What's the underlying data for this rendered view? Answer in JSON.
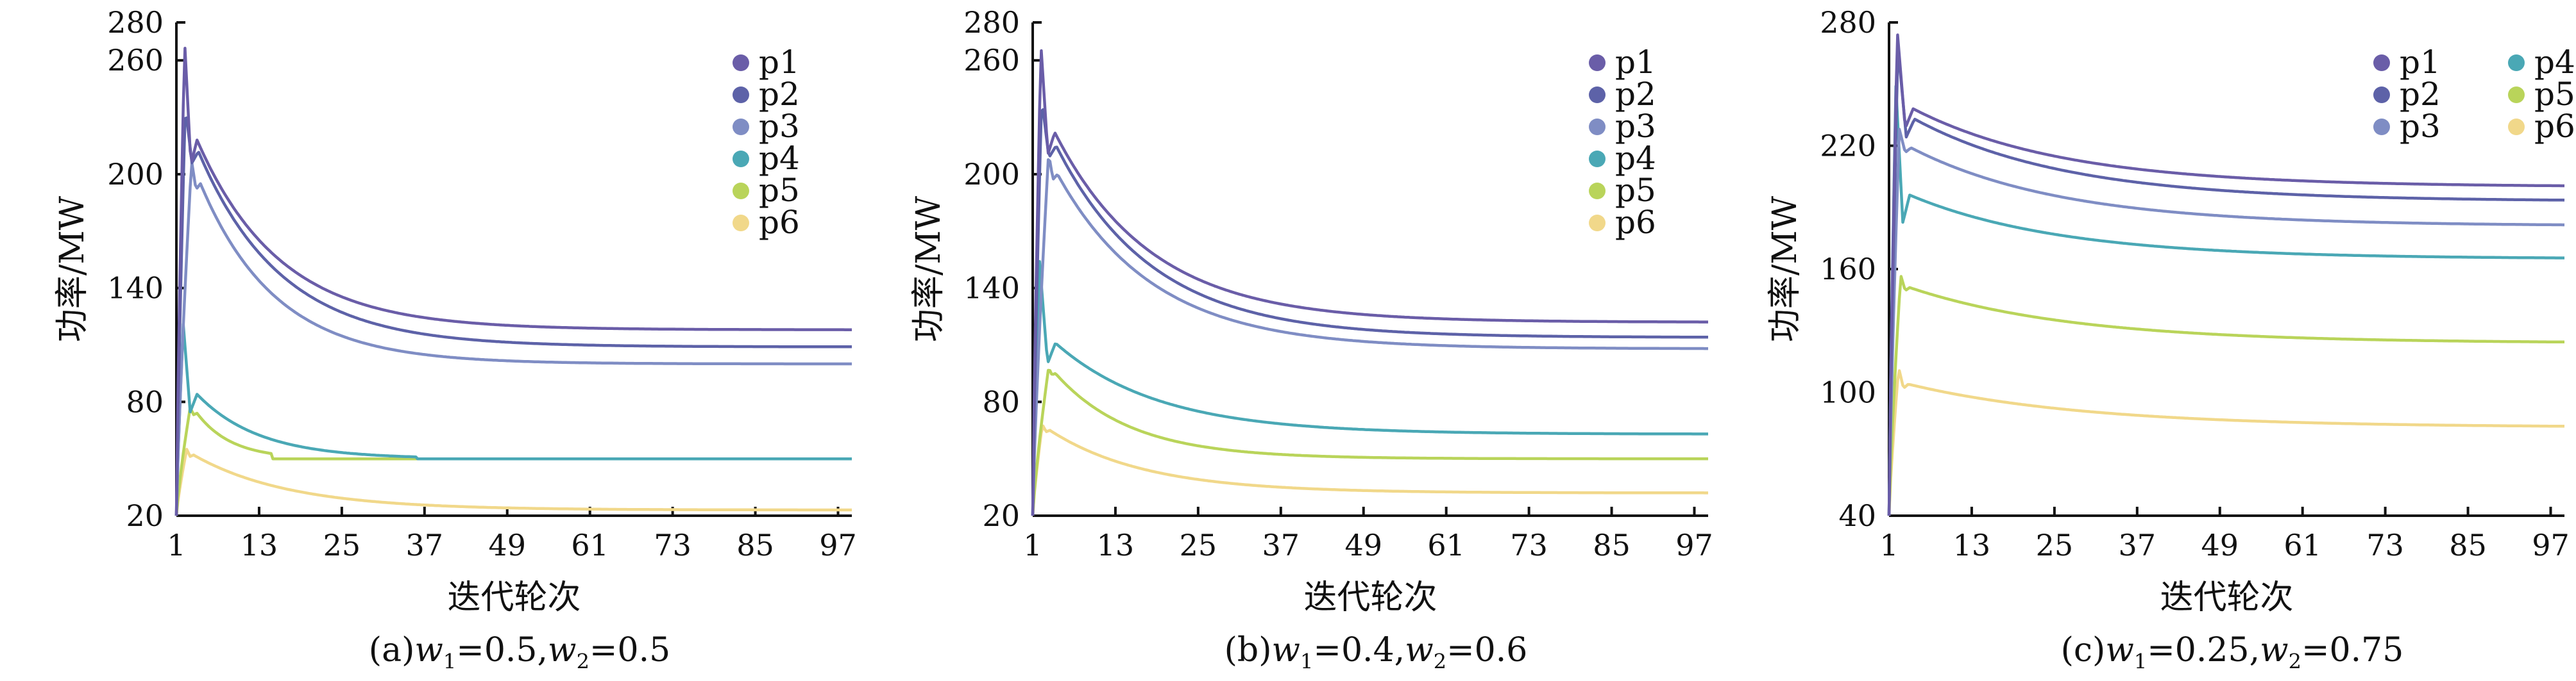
{
  "chart_data": [
    {
      "type": "line",
      "id": "a",
      "caption": {
        "prefix": "(a)",
        "w1_sym": "w",
        "w1_sub": "1",
        "w1_val": "=0.5,",
        "w2_sym": "w",
        "w2_sub": "2",
        "w2_val": "=0.5"
      },
      "xlabel": "迭代轮次",
      "ylabel": "功率/MW",
      "xlim": [
        1,
        99
      ],
      "ylim": [
        20,
        280
      ],
      "xticks": [
        1,
        13,
        25,
        37,
        49,
        61,
        73,
        85,
        97
      ],
      "yticks": [
        20,
        80,
        140,
        200,
        260,
        280
      ],
      "grid": false,
      "legend_position": "top-right",
      "legend_columns": 1,
      "series": [
        {
          "name": "p1",
          "color": "#6a5da8",
          "start": 20,
          "peak": 270,
          "peak_x": 2.2,
          "settle": 118,
          "bump_x": 4.0,
          "bump_y": 218,
          "tau": 12
        },
        {
          "name": "p2",
          "color": "#5d62a8",
          "start": 20,
          "peak": 236,
          "peak_x": 2.3,
          "settle": 109,
          "bump_x": 4.2,
          "bump_y": 212,
          "tau": 12
        },
        {
          "name": "p3",
          "color": "#7f8dc4",
          "start": 20,
          "peak": 207,
          "peak_x": 3.2,
          "settle": 100,
          "bump_x": 4.5,
          "bump_y": 195,
          "tau": 11
        },
        {
          "name": "p4",
          "color": "#4aa8b5",
          "start": 20,
          "peak": 121,
          "peak_x": 2.0,
          "settle": 50,
          "bump_x": 4.0,
          "bump_y": 84,
          "tau": 9,
          "flat_x": 36
        },
        {
          "name": "p5",
          "color": "#b9d45a",
          "start": 20,
          "peak": 77,
          "peak_x": 3.0,
          "settle": 50,
          "bump_x": 4.0,
          "bump_y": 74,
          "tau": 5,
          "flat_x": 15
        },
        {
          "name": "p6",
          "color": "#f1d88a",
          "start": 20,
          "peak": 55,
          "peak_x": 2.5,
          "settle": 23,
          "bump_x": 3.5,
          "bump_y": 52,
          "tau": 14
        }
      ]
    },
    {
      "type": "line",
      "id": "b",
      "caption": {
        "prefix": "(b)",
        "w1_sym": "w",
        "w1_sub": "1",
        "w1_val": "=0.4,",
        "w2_sym": "w",
        "w2_sub": "2",
        "w2_val": "=0.6"
      },
      "xlabel": "迭代轮次",
      "ylabel": "功率/MW",
      "xlim": [
        1,
        99
      ],
      "ylim": [
        20,
        280
      ],
      "xticks": [
        1,
        13,
        25,
        37,
        49,
        61,
        73,
        85,
        97
      ],
      "yticks": [
        20,
        80,
        140,
        200,
        260,
        280
      ],
      "grid": false,
      "legend_position": "top-right",
      "legend_columns": 1,
      "series": [
        {
          "name": "p1",
          "color": "#6a5da8",
          "start": 20,
          "peak": 268,
          "peak_x": 2.2,
          "settle": 122,
          "bump_x": 4.2,
          "bump_y": 222,
          "tau": 14
        },
        {
          "name": "p2",
          "color": "#5d62a8",
          "start": 20,
          "peak": 240,
          "peak_x": 2.3,
          "settle": 114,
          "bump_x": 4.4,
          "bump_y": 215,
          "tau": 14
        },
        {
          "name": "p3",
          "color": "#7f8dc4",
          "start": 20,
          "peak": 211,
          "peak_x": 3.3,
          "settle": 108,
          "bump_x": 4.6,
          "bump_y": 200,
          "tau": 14
        },
        {
          "name": "p4",
          "color": "#4aa8b5",
          "start": 20,
          "peak": 154,
          "peak_x": 2.0,
          "settle": 63,
          "bump_x": 4.3,
          "bump_y": 111,
          "tau": 15
        },
        {
          "name": "p5",
          "color": "#b9d45a",
          "start": 20,
          "peak": 98,
          "peak_x": 3.3,
          "settle": 50,
          "bump_x": 4.3,
          "bump_y": 95,
          "tau": 11
        },
        {
          "name": "p6",
          "color": "#f1d88a",
          "start": 20,
          "peak": 68,
          "peak_x": 2.4,
          "settle": 32,
          "bump_x": 3.5,
          "bump_y": 65,
          "tau": 14
        }
      ]
    },
    {
      "type": "line",
      "id": "c",
      "caption": {
        "prefix": "(c)",
        "w1_sym": "w",
        "w1_sub": "1",
        "w1_val": "=0.25,",
        "w2_sym": "w",
        "w2_sub": "2",
        "w2_val": "=0.75"
      },
      "xlabel": "迭代轮次",
      "ylabel": "功率/MW",
      "xlim": [
        1,
        99
      ],
      "ylim": [
        40,
        280
      ],
      "xticks": [
        1,
        13,
        25,
        37,
        49,
        61,
        73,
        85,
        97
      ],
      "yticks": [
        40,
        100,
        160,
        220,
        280
      ],
      "grid": false,
      "legend_position": "top-right",
      "legend_columns": 2,
      "series": [
        {
          "name": "p1",
          "color": "#6a5da8",
          "start": 40,
          "peak": 276,
          "peak_x": 2.2,
          "settle": 200,
          "bump_x": 4.5,
          "bump_y": 238,
          "tau": 22
        },
        {
          "name": "p2",
          "color": "#5d62a8",
          "start": 40,
          "peak": 268,
          "peak_x": 2.3,
          "settle": 193,
          "bump_x": 4.7,
          "bump_y": 233,
          "tau": 22
        },
        {
          "name": "p3",
          "color": "#7f8dc4",
          "start": 40,
          "peak": 228,
          "peak_x": 2.5,
          "settle": 181,
          "bump_x": 4.2,
          "bump_y": 219,
          "tau": 22
        },
        {
          "name": "p4",
          "color": "#4aa8b5",
          "start": 40,
          "peak": 249,
          "peak_x": 2.0,
          "settle": 165,
          "bump_x": 4.0,
          "bump_y": 196,
          "tau": 22
        },
        {
          "name": "p5",
          "color": "#b9d45a",
          "start": 40,
          "peak": 157,
          "peak_x": 2.7,
          "settle": 124,
          "bump_x": 4.0,
          "bump_y": 151,
          "tau": 24
        },
        {
          "name": "p6",
          "color": "#f1d88a",
          "start": 40,
          "peak": 112,
          "peak_x": 2.4,
          "settle": 83,
          "bump_x": 3.8,
          "bump_y": 104,
          "tau": 26
        }
      ]
    }
  ]
}
